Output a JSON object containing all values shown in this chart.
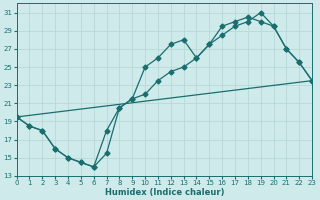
{
  "xlabel": "Humidex (Indice chaleur)",
  "bg_color": "#ceeaea",
  "grid_color": "#b8d8d8",
  "line_color": "#1a6e6e",
  "xlim": [
    0,
    23
  ],
  "ylim": [
    13,
    32
  ],
  "yticks": [
    13,
    15,
    17,
    19,
    21,
    23,
    25,
    27,
    29,
    31
  ],
  "xticks": [
    0,
    1,
    2,
    3,
    4,
    5,
    6,
    7,
    8,
    9,
    10,
    11,
    12,
    13,
    14,
    15,
    16,
    17,
    18,
    19,
    20,
    21,
    22,
    23
  ],
  "line1_x": [
    0,
    1,
    2,
    3,
    4,
    5,
    6,
    7,
    8,
    9,
    10,
    11,
    12,
    13,
    14,
    15,
    16,
    17,
    18,
    19,
    20,
    21,
    22,
    23
  ],
  "line1_y": [
    19.5,
    18.5,
    18.0,
    16.0,
    15.0,
    14.5,
    14.0,
    18.0,
    20.5,
    21.5,
    22.0,
    23.5,
    24.5,
    25.0,
    26.0,
    27.5,
    28.5,
    29.5,
    30.0,
    31.0,
    29.5,
    27.0,
    25.5,
    23.5
  ],
  "line2_x": [
    0,
    1,
    2,
    3,
    4,
    5,
    6,
    7,
    8,
    9,
    10,
    11,
    12,
    13,
    14,
    15,
    16,
    17,
    18,
    19,
    20,
    21,
    22,
    23
  ],
  "line2_y": [
    19.5,
    18.5,
    18.0,
    16.0,
    15.0,
    14.5,
    14.0,
    15.5,
    20.5,
    21.5,
    25.0,
    26.0,
    27.5,
    28.0,
    26.0,
    27.5,
    29.5,
    30.0,
    30.5,
    30.0,
    29.5,
    27.0,
    25.5,
    23.5
  ],
  "line3_x": [
    0,
    23
  ],
  "line3_y": [
    19.5,
    23.5
  ],
  "marker": "D",
  "markersize": 2.5,
  "linewidth": 0.9
}
